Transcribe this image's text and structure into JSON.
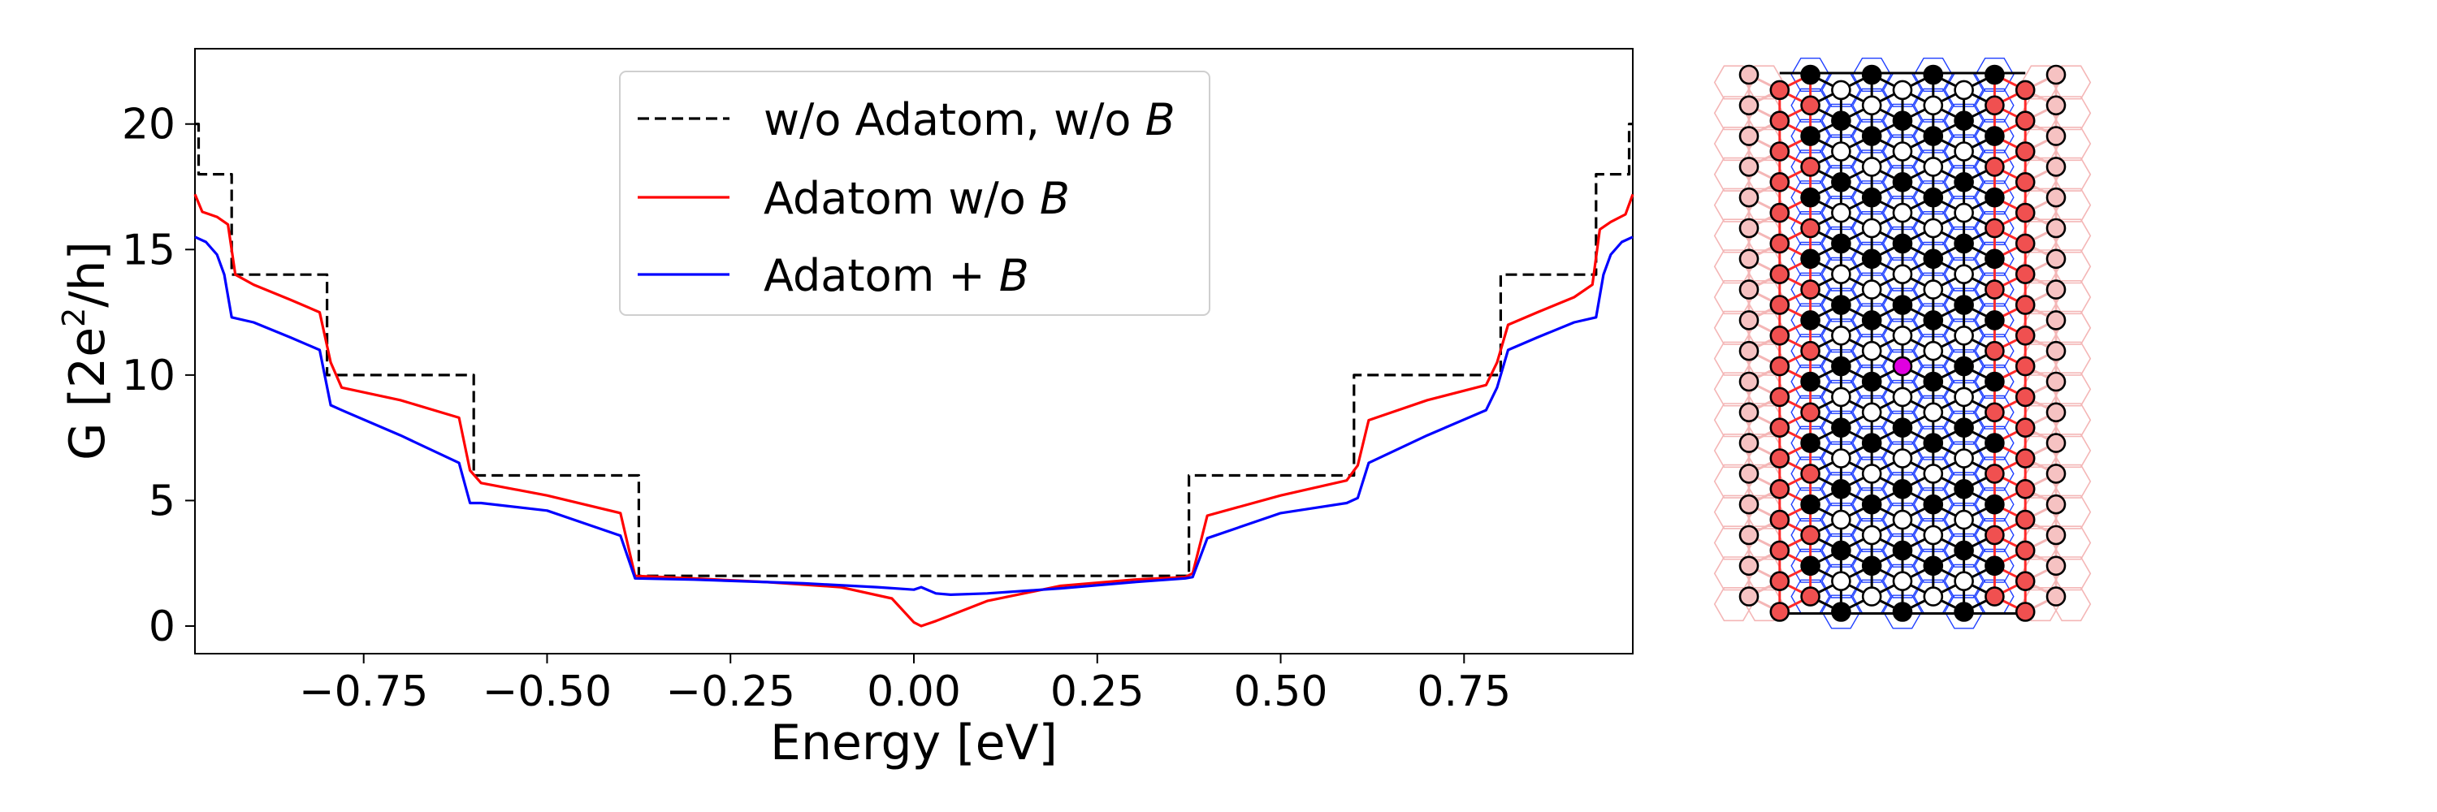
{
  "chart_data": [
    {
      "type": "line",
      "title": "",
      "xlabel": "Energy [eV]",
      "ylabel_parts": {
        "lead": "G [2e",
        "exp": "2",
        "tail": "/h]"
      },
      "xlim": [
        -0.98,
        0.98
      ],
      "ylim": [
        -1.1,
        23
      ],
      "xticks": [
        -0.75,
        -0.5,
        -0.25,
        0.0,
        0.25,
        0.5,
        0.75
      ],
      "xtick_labels": [
        "−0.75",
        "−0.50",
        "−0.25",
        "0.00",
        "0.25",
        "0.50",
        "0.75"
      ],
      "yticks": [
        0,
        5,
        10,
        15,
        20
      ],
      "ytick_labels": [
        "0",
        "5",
        "10",
        "15",
        "20"
      ],
      "grid": false,
      "legend_position": "top-center",
      "series": [
        {
          "name": "w/o Adatom, w/o B",
          "legend_label": {
            "text": "w/o Adatom, w/o ",
            "symbol": "B"
          },
          "color": "#000000",
          "style": "dashed",
          "x": [
            -0.98,
            -0.975,
            -0.975,
            -0.93,
            -0.93,
            -0.8,
            -0.8,
            -0.6,
            -0.6,
            -0.375,
            -0.375,
            0.375,
            0.375,
            0.6,
            0.6,
            0.8,
            0.8,
            0.93,
            0.93,
            0.975,
            0.975,
            0.98
          ],
          "y": [
            20,
            20,
            18,
            18,
            14,
            14,
            10,
            10,
            6,
            6,
            2,
            2,
            6,
            6,
            10,
            10,
            14,
            14,
            18,
            18,
            20,
            20
          ]
        },
        {
          "name": "Adatom w/o B",
          "legend_label": {
            "text": "Adatom w/o ",
            "symbol": "B"
          },
          "color": "#ff0000",
          "style": "solid",
          "x": [
            -0.98,
            -0.97,
            -0.95,
            -0.935,
            -0.925,
            -0.9,
            -0.85,
            -0.81,
            -0.795,
            -0.78,
            -0.7,
            -0.62,
            -0.605,
            -0.59,
            -0.5,
            -0.4,
            -0.38,
            -0.3,
            -0.2,
            -0.1,
            -0.03,
            0.0,
            0.01,
            0.03,
            0.1,
            0.2,
            0.3,
            0.37,
            0.38,
            0.4,
            0.5,
            0.59,
            0.605,
            0.62,
            0.7,
            0.78,
            0.795,
            0.81,
            0.85,
            0.9,
            0.925,
            0.935,
            0.95,
            0.97,
            0.98
          ],
          "y": [
            17.2,
            16.5,
            16.3,
            16.0,
            14.0,
            13.6,
            13.0,
            12.5,
            10.5,
            9.5,
            9.0,
            8.3,
            6.2,
            5.7,
            5.2,
            4.5,
            2.0,
            1.9,
            1.75,
            1.55,
            1.1,
            0.15,
            0.0,
            0.2,
            1.0,
            1.6,
            1.85,
            1.95,
            2.1,
            4.4,
            5.2,
            5.8,
            6.4,
            8.2,
            9.0,
            9.6,
            10.5,
            12.0,
            12.5,
            13.1,
            13.6,
            15.8,
            16.1,
            16.4,
            17.2
          ]
        },
        {
          "name": "Adatom + B",
          "legend_label": {
            "text": "Adatom + ",
            "symbol": "B"
          },
          "color": "#0000ff",
          "style": "solid",
          "x": [
            -0.98,
            -0.965,
            -0.95,
            -0.94,
            -0.93,
            -0.9,
            -0.85,
            -0.81,
            -0.795,
            -0.78,
            -0.7,
            -0.62,
            -0.605,
            -0.59,
            -0.5,
            -0.4,
            -0.38,
            -0.3,
            -0.15,
            -0.05,
            0.0,
            0.01,
            0.03,
            0.05,
            0.1,
            0.2,
            0.3,
            0.37,
            0.38,
            0.4,
            0.5,
            0.59,
            0.605,
            0.62,
            0.7,
            0.78,
            0.795,
            0.81,
            0.85,
            0.9,
            0.93,
            0.94,
            0.95,
            0.965,
            0.98
          ],
          "y": [
            15.5,
            15.3,
            14.8,
            14.0,
            12.3,
            12.1,
            11.5,
            11.0,
            8.8,
            8.6,
            7.6,
            6.5,
            4.9,
            4.9,
            4.6,
            3.6,
            1.9,
            1.85,
            1.7,
            1.55,
            1.45,
            1.55,
            1.3,
            1.25,
            1.3,
            1.5,
            1.75,
            1.9,
            1.95,
            3.5,
            4.5,
            4.9,
            5.1,
            6.5,
            7.6,
            8.6,
            9.5,
            11.0,
            11.5,
            12.1,
            12.3,
            14.0,
            14.8,
            15.3,
            15.5
          ]
        }
      ]
    },
    {
      "type": "diagram",
      "description_label": "",
      "colors": {
        "edge_black": "#000000",
        "edge_red": "#ff2a2a",
        "edge_pink": "#f4b6b6",
        "edge_blue": "#1f3fff",
        "node_black": "#000000",
        "node_white": "#ffffff",
        "node_red": "#f05050",
        "node_pink": "#f6c2c2",
        "adatom": "#e000e0"
      }
    }
  ]
}
